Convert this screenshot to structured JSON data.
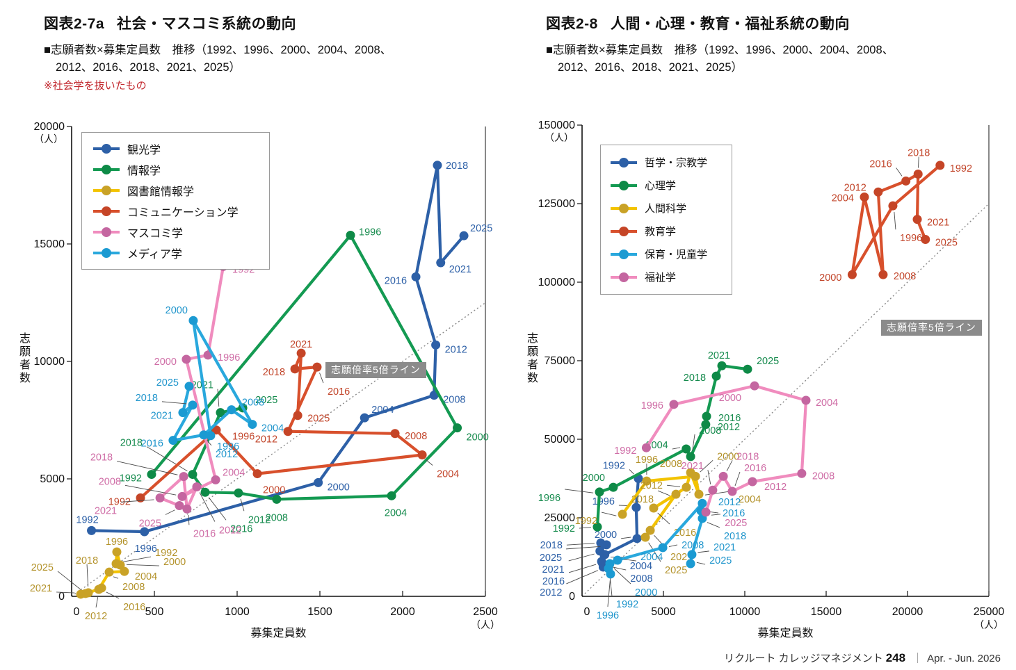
{
  "footer": {
    "brand": "リクルート カレッジマネジメント",
    "issue": "248",
    "sep": "｜",
    "date": "Apr. - Jun. 2026"
  },
  "chart_data": [
    {
      "type": "line",
      "fig_label": "図表2-7a",
      "title": "社会・マスコミ系統の動向",
      "subtitle_line1": "■志願者数×募集定員数　推移（1992、1996、2000、2004、2008、",
      "subtitle_line2": "2012、2016、2018、2021、2025）",
      "note": "※社会学を抜いたもの",
      "xlabel": "募集定員数",
      "ylabel": "志願者数",
      "unit": "（人）",
      "xlim": [
        0,
        2500
      ],
      "ylim": [
        0,
        20000
      ],
      "xticks": [
        0,
        500,
        1000,
        1500,
        2000,
        2500
      ],
      "yticks": [
        0,
        5000,
        10000,
        15000,
        20000
      ],
      "ratio_line": {
        "label": "志願倍率5倍ライン",
        "slope": 5
      },
      "series": [
        {
          "name": "観光学",
          "lc": "#2d60a7",
          "mc": "#2d60a7",
          "tc": "#2d60a7",
          "points": [
            [
              1992,
              120,
              2800,
              -6,
              -16
            ],
            [
              1996,
              440,
              2750,
              2,
              24
            ],
            [
              2000,
              1490,
              4840,
              13,
              6
            ],
            [
              2004,
              1770,
              7600,
              10,
              -12
            ],
            [
              2008,
              2190,
              8560,
              13,
              6
            ],
            [
              2012,
              2200,
              10700,
              13,
              6
            ],
            [
              2016,
              2080,
              13600,
              -13,
              5
            ],
            [
              2018,
              2210,
              18350,
              12,
              0
            ],
            [
              2021,
              2230,
              14200,
              12,
              9
            ],
            [
              2025,
              2370,
              15350,
              9,
              -11
            ]
          ]
        },
        {
          "name": "情報学",
          "lc": "#149a52",
          "mc": "#0e8a47",
          "tc": "#148a4c",
          "points": [
            [
              1992,
              483,
              5190,
              -14,
              5
            ],
            [
              1996,
              1685,
              15370,
              12,
              -5
            ],
            [
              2000,
              2330,
              7170,
              13,
              13
            ],
            [
              2004,
              1933,
              4280,
              6,
              24
            ],
            [
              2008,
              1239,
              4130,
              0,
              26
            ],
            [
              2012,
              1008,
              4400,
              14,
              38
            ],
            [
              2016,
              807,
              4430,
              36,
              52
            ],
            [
              2018,
              731,
              5190,
              -72,
              -46
            ],
            [
              2021,
              899,
              7820,
              -10,
              -40
            ],
            [
              2025,
              1034,
              8020,
              18,
              -12
            ]
          ]
        },
        {
          "name": "図書館情報学",
          "lc": "#f3c300",
          "mc": "#c9a227",
          "tc": "#b3922a",
          "points": [
            [
              1992,
              269,
              1390,
              56,
              -16
            ],
            [
              1996,
              273,
              1890,
              0,
              -15
            ],
            [
              2000,
              294,
              1330,
              62,
              -5
            ],
            [
              2004,
              319,
              1060,
              15,
              7
            ],
            [
              2008,
              227,
              1030,
              19,
              21
            ],
            [
              2012,
              164,
              295,
              -4,
              38
            ],
            [
              2016,
              181,
              354,
              31,
              27
            ],
            [
              2018,
              101,
              150,
              -2,
              -47
            ],
            [
              2021,
              55,
              90,
              -41,
              -9
            ],
            [
              2025,
              84,
              120,
              -46,
              -38
            ]
          ]
        },
        {
          "name": "コミュニケーション学",
          "lc": "#d8502c",
          "mc": "#c54527",
          "tc": "#c2452a",
          "points": [
            [
              1992,
              416,
              4190,
              -14,
              5
            ],
            [
              1996,
              874,
              7080,
              23,
              9
            ],
            [
              2000,
              1122,
              5220,
              8,
              23
            ],
            [
              2004,
              2118,
              6020,
              21,
              27
            ],
            [
              2008,
              1954,
              6930,
              14,
              3
            ],
            [
              2012,
              1307,
              7020,
              -15,
              11
            ],
            [
              2016,
              1483,
              9760,
              15,
              35
            ],
            [
              2018,
              1349,
              9680,
              -14,
              4
            ],
            [
              2021,
              1387,
              10350,
              0,
              -13
            ],
            [
              2025,
              1366,
              7700,
              14,
              4
            ]
          ]
        },
        {
          "name": "マスコミ学",
          "lc": "#f08cbe",
          "mc": "#c466a0",
          "tc": "#cf6da6",
          "points": [
            [
              1992,
              916,
              14040,
              13,
              4
            ],
            [
              1996,
              824,
              10270,
              14,
              3
            ],
            [
              2000,
              693,
              10090,
              -14,
              3
            ],
            [
              2004,
              870,
              4960,
              10,
              -11
            ],
            [
              2008,
              668,
              4250,
              -88,
              -22
            ],
            [
              2012,
              756,
              4660,
              32,
              62
            ],
            [
              2016,
              697,
              3720,
              9,
              35
            ],
            [
              2018,
              677,
              5100,
              -102,
              -28
            ],
            [
              2021,
              534,
              4190,
              -62,
              18
            ],
            [
              2025,
              651,
              3860,
              -26,
              25
            ]
          ]
        },
        {
          "name": "メディア学",
          "lc": "#29a8dd",
          "mc": "#1b9ad2",
          "tc": "#1f95cc",
          "points": [
            [
              1996,
              840,
              6840,
              9,
              15
            ],
            [
              2000,
              735,
              11740,
              -8,
              -15
            ],
            [
              2004,
              1092,
              7320,
              13,
              5
            ],
            [
              2008,
              966,
              7940,
              15,
              -11
            ],
            [
              2012,
              798,
              6870,
              17,
              27
            ],
            [
              2016,
              613,
              6640,
              -14,
              4
            ],
            [
              2018,
              731,
              8140,
              -50,
              -11
            ],
            [
              2021,
              672,
              7820,
              -14,
              4
            ],
            [
              2025,
              710,
              8940,
              -15,
              -6
            ]
          ]
        }
      ]
    },
    {
      "type": "line",
      "fig_label": "図表2-8",
      "title": "人間・心理・教育・福祉系統の動向",
      "subtitle_line1": "■志願者数×募集定員数　推移（1992、1996、2000、2004、2008、",
      "subtitle_line2": "2012、2016、2018、2021、2025）",
      "note": "",
      "xlabel": "募集定員数",
      "ylabel": "志願者数",
      "unit": "（人）",
      "xlim": [
        0,
        25000
      ],
      "ylim": [
        0,
        150000
      ],
      "xticks": [
        0,
        5000,
        10000,
        15000,
        20000,
        25000
      ],
      "yticks": [
        0,
        25000,
        50000,
        75000,
        100000,
        125000,
        150000
      ],
      "ratio_line": {
        "label": "志願倍率5倍ライン",
        "slope": 5
      },
      "series": [
        {
          "name": "哲学・宗教学",
          "lc": "#2d60a7",
          "mc": "#2d60a7",
          "tc": "#2d60a7",
          "points": [
            [
              1992,
              3460,
              37500,
              -19,
              -19
            ],
            [
              1996,
              3330,
              28300,
              -31,
              -9
            ],
            [
              2000,
              3380,
              18400,
              -29,
              -6
            ],
            [
              2004,
              1400,
              13300,
              36,
              16
            ],
            [
              2008,
              1250,
              10600,
              40,
              22
            ],
            [
              2012,
              1300,
              9300,
              -59,
              36
            ],
            [
              2016,
              1200,
              11100,
              -53,
              28
            ],
            [
              2018,
              1150,
              17000,
              -55,
              3
            ],
            [
              2021,
              1100,
              14400,
              -51,
              26
            ],
            [
              2025,
              1500,
              16400,
              -64,
              18
            ]
          ]
        },
        {
          "name": "心理学",
          "lc": "#149a52",
          "mc": "#0e8a47",
          "tc": "#148a4c",
          "points": [
            [
              1992,
              940,
              22100,
              -32,
              2
            ],
            [
              1996,
              1070,
              33200,
              -56,
              8
            ],
            [
              2000,
              1920,
              34700,
              -12,
              -14
            ],
            [
              2004,
              6400,
              46900,
              -26,
              -6
            ],
            [
              2008,
              6670,
              44500,
              12,
              -38
            ],
            [
              2012,
              7600,
              54700,
              17,
              3
            ],
            [
              2016,
              7650,
              57300,
              17,
              2
            ],
            [
              2018,
              8250,
              70100,
              -15,
              2
            ],
            [
              2021,
              8590,
              73400,
              -4,
              -15
            ],
            [
              2025,
              10170,
              72300,
              13,
              -12
            ]
          ]
        },
        {
          "name": "人間科学",
          "lc": "#f3c300",
          "mc": "#c9a227",
          "tc": "#b3922a",
          "points": [
            [
              1992,
              2480,
              26100,
              -36,
              9
            ],
            [
              1996,
              3970,
              36700,
              0,
              -31
            ],
            [
              2000,
              6970,
              38200,
              31,
              -29
            ],
            [
              2004,
              7180,
              32500,
              57,
              7
            ],
            [
              2008,
              6670,
              39400,
              -12,
              -13
            ],
            [
              2012,
              6410,
              34700,
              -34,
              -3
            ],
            [
              2016,
              4400,
              28100,
              29,
              35
            ],
            [
              2018,
              5770,
              32500,
              -32,
              7
            ],
            [
              2021,
              4190,
              21000,
              29,
              38
            ],
            [
              2025,
              3890,
              18800,
              28,
              47
            ]
          ]
        },
        {
          "name": "教育学",
          "lc": "#d8502c",
          "mc": "#c54527",
          "tc": "#c2452a",
          "points": [
            [
              1992,
              22000,
              137200,
              14,
              4
            ],
            [
              1996,
              19100,
              124300,
              10,
              46
            ],
            [
              2000,
              16600,
              102400,
              -15,
              4
            ],
            [
              2004,
              17350,
              127100,
              -15,
              1
            ],
            [
              2008,
              18500,
              102400,
              15,
              2
            ],
            [
              2012,
              18200,
              128700,
              -17,
              -7
            ],
            [
              2016,
              19900,
              132200,
              -20,
              -25
            ],
            [
              2018,
              20650,
              134400,
              1,
              -31
            ],
            [
              2021,
              20600,
              120000,
              14,
              4
            ],
            [
              2025,
              21100,
              113600,
              14,
              4
            ]
          ]
        },
        {
          "name": "保育・児童学",
          "lc": "#29a8dd",
          "mc": "#1b9ad2",
          "tc": "#1f95cc",
          "points": [
            [
              1992,
              1620,
              8850,
              11,
              51
            ],
            [
              1996,
              1750,
              7100,
              -4,
              59
            ],
            [
              2000,
              1710,
              10400,
              36,
              41
            ],
            [
              2004,
              2180,
              11500,
              33,
              -5
            ],
            [
              2008,
              4960,
              15500,
              27,
              -4
            ],
            [
              2012,
              7390,
              29600,
              23,
              -2
            ],
            [
              2016,
              7310,
              27200,
              31,
              3
            ],
            [
              2018,
              7390,
              24800,
              31,
              25
            ],
            [
              2021,
              6750,
              13300,
              31,
              -11
            ],
            [
              2025,
              6670,
              10400,
              27,
              -5
            ]
          ]
        },
        {
          "name": "福祉学",
          "lc": "#f08cbe",
          "mc": "#c466a0",
          "tc": "#cf6da6",
          "points": [
            [
              1992,
              3950,
              47300,
              -14,
              4
            ],
            [
              1996,
              5640,
              61100,
              -15,
              1
            ],
            [
              2000,
              10600,
              67000,
              -19,
              17
            ],
            [
              2004,
              13760,
              62400,
              14,
              3
            ],
            [
              2008,
              13500,
              39100,
              15,
              3
            ],
            [
              2012,
              10470,
              36500,
              17,
              7
            ],
            [
              2016,
              9230,
              33400,
              17,
              -34
            ],
            [
              2018,
              8680,
              38200,
              19,
              -29
            ],
            [
              2021,
              8030,
              33800,
              -13,
              -35
            ],
            [
              2025,
              7610,
              26800,
              27,
              15
            ]
          ]
        }
      ]
    }
  ]
}
